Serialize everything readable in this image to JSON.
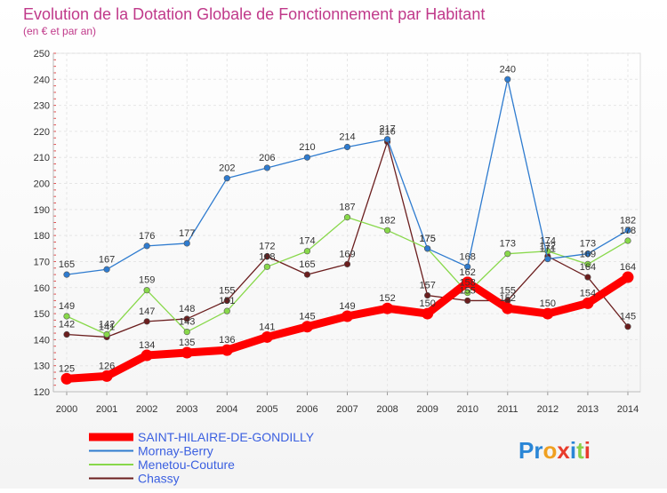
{
  "chart_data": {
    "type": "line",
    "title": "Evolution de la Dotation Globale de Fonctionnement par Habitant",
    "subtitle": "(en € et par an)",
    "xlabel": "",
    "ylabel": "",
    "x": [
      "2000",
      "2001",
      "2002",
      "2003",
      "2004",
      "2005",
      "2006",
      "2007",
      "2008",
      "2009",
      "2010",
      "2011",
      "2012",
      "2013",
      "2014"
    ],
    "ylim": [
      120,
      250
    ],
    "yticks": [
      "120",
      "130",
      "140",
      "150",
      "160",
      "170",
      "180",
      "190",
      "200",
      "210",
      "220",
      "230",
      "240",
      "250"
    ],
    "grid": true,
    "legend_position": "bottom-left",
    "series": [
      {
        "name": "SAINT-HILAIRE-DE-GONDILLY",
        "color": "#ff0000",
        "values": [
          125,
          126,
          134,
          135,
          136,
          141,
          145,
          149,
          152,
          150,
          162,
          152,
          150,
          154,
          164
        ],
        "labels": [
          "125",
          "126",
          "134",
          "135",
          "136",
          "141",
          "145",
          "149",
          "152",
          "150",
          "162",
          "152",
          "150",
          "154",
          "164"
        ]
      },
      {
        "name": "Mornay-Berry",
        "color": "#2e7bcf",
        "values": [
          165,
          167,
          176,
          177,
          202,
          206,
          210,
          214,
          217,
          175,
          168,
          240,
          171,
          173,
          182
        ],
        "labels": [
          "165",
          "167",
          "176",
          "177",
          "202",
          "206",
          "210",
          "214",
          "217",
          "175",
          "168",
          "240",
          "171",
          "173",
          "182"
        ]
      },
      {
        "name": "Menetou-Couture",
        "color": "#88d84a",
        "values": [
          149,
          142,
          159,
          143,
          151,
          168,
          174,
          187,
          182,
          175,
          158,
          173,
          174,
          169,
          178
        ],
        "labels": [
          "149",
          "142",
          "159",
          "143",
          "151",
          "168",
          "174",
          "187",
          "182",
          "175",
          "158",
          "173",
          "174",
          "169",
          "178"
        ]
      },
      {
        "name": "Chassy",
        "color": "#6b1e1e",
        "values": [
          142,
          141,
          147,
          148,
          155,
          172,
          165,
          169,
          216,
          157,
          155,
          155,
          172,
          164,
          145
        ],
        "labels": [
          "142",
          "141",
          "147",
          "148",
          "155",
          "172",
          "165",
          "169",
          "216",
          "157",
          "155",
          "155",
          "172",
          "164",
          "145"
        ]
      }
    ]
  },
  "logo": {
    "text": "Proxiti"
  }
}
